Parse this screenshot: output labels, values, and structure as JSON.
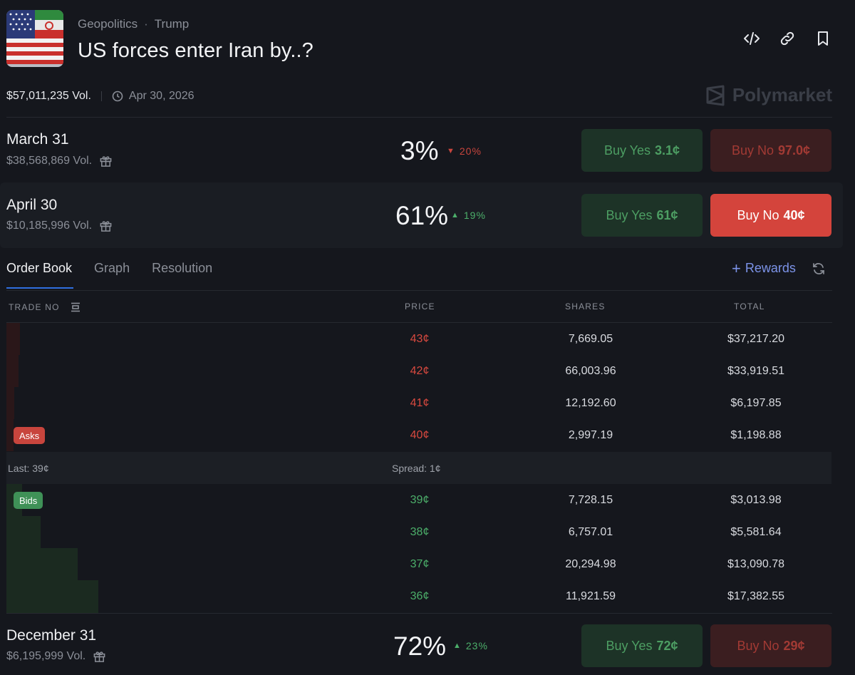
{
  "header": {
    "breadcrumb": [
      "Geopolitics",
      "Trump"
    ],
    "title": "US forces enter Iran by..?",
    "volume": "$57,011,235 Vol.",
    "end_date": "Apr 30, 2026",
    "brand": "Polymarket",
    "icons": [
      "embed-icon",
      "link-icon",
      "bookmark-icon"
    ]
  },
  "markets": [
    {
      "name": "March 31",
      "volume": "$38,568,869 Vol.",
      "pct": "3%",
      "change": "20%",
      "direction": "down",
      "yes_label": "Buy Yes",
      "yes_price": "3.1¢",
      "no_label": "Buy No",
      "no_price": "97.0¢"
    },
    {
      "name": "April 30",
      "volume": "$10,185,996 Vol.",
      "pct": "61%",
      "change": "19%",
      "direction": "up",
      "yes_label": "Buy Yes",
      "yes_price": "61¢",
      "no_label": "Buy No",
      "no_price": "40¢"
    },
    {
      "name": "December 31",
      "volume": "$6,195,999 Vol.",
      "pct": "72%",
      "change": "23%",
      "direction": "up",
      "yes_label": "Buy Yes",
      "yes_price": "72¢",
      "no_label": "Buy No",
      "no_price": "29¢"
    }
  ],
  "tabs": [
    "Order Book",
    "Graph",
    "Resolution"
  ],
  "rewards_label": "Rewards",
  "orderbook": {
    "columns": {
      "trade": "TRADE NO",
      "price": "PRICE",
      "shares": "SHARES",
      "total": "TOTAL"
    },
    "asks_label": "Asks",
    "bids_label": "Bids",
    "asks": [
      {
        "price": "43¢",
        "shares": "7,669.05",
        "total": "$37,217.20"
      },
      {
        "price": "42¢",
        "shares": "66,003.96",
        "total": "$33,919.51"
      },
      {
        "price": "41¢",
        "shares": "12,192.60",
        "total": "$6,197.85"
      },
      {
        "price": "40¢",
        "shares": "2,997.19",
        "total": "$1,198.88"
      }
    ],
    "last": "Last: 39¢",
    "spread": "Spread: 1¢",
    "bids": [
      {
        "price": "39¢",
        "shares": "7,728.15",
        "total": "$3,013.98"
      },
      {
        "price": "38¢",
        "shares": "6,757.01",
        "total": "$5,581.64"
      },
      {
        "price": "37¢",
        "shares": "20,294.98",
        "total": "$13,090.78"
      },
      {
        "price": "36¢",
        "shares": "11,921.59",
        "total": "$17,382.55"
      }
    ]
  },
  "colors": {
    "ask": "#d8493f",
    "bid": "#4caf6a",
    "accent": "#2f6fe0",
    "rewards": "#7c93e8"
  }
}
